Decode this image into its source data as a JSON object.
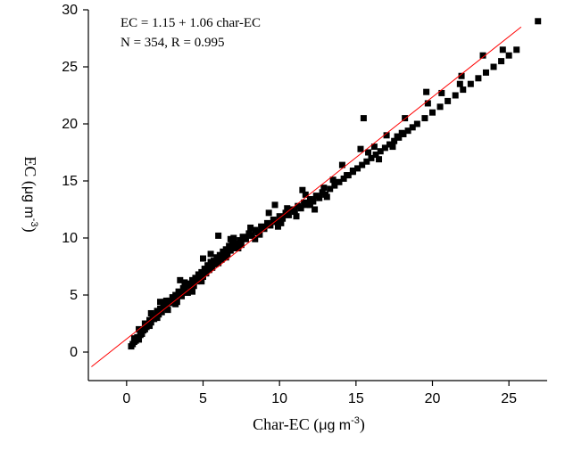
{
  "chart_data": {
    "type": "scatter",
    "title": "",
    "xlabel": {
      "prefix": "Char-EC (",
      "unit": "μg m",
      "sup": "-3",
      "suffix": ")"
    },
    "ylabel": {
      "prefix": "EC (",
      "unit": "μg m",
      "sup": "-3",
      "suffix": ")"
    },
    "xlim": [
      -2.5,
      27.5
    ],
    "ylim": [
      -2.5,
      30
    ],
    "xticks": [
      0,
      5,
      10,
      15,
      20,
      25
    ],
    "yticks": [
      0,
      5,
      10,
      15,
      20,
      25,
      30
    ],
    "grid": false,
    "annotations": [
      "EC = 1.15 + 1.06 char-EC",
      "N = 354, R = 0.995"
    ],
    "fit": {
      "intercept": 1.15,
      "slope": 1.06,
      "x_range": [
        -2.3,
        25.8
      ],
      "color": "#ff0000"
    },
    "marker_color": "#000000",
    "points": [
      [
        0.3,
        0.5
      ],
      [
        0.4,
        0.7
      ],
      [
        0.5,
        0.9
      ],
      [
        0.6,
        1.0
      ],
      [
        0.7,
        1.3
      ],
      [
        0.8,
        1.1
      ],
      [
        0.9,
        1.5
      ],
      [
        0.9,
        1.8
      ],
      [
        1.0,
        1.6
      ],
      [
        1.1,
        1.9
      ],
      [
        1.2,
        2.0
      ],
      [
        1.3,
        2.2
      ],
      [
        1.4,
        2.5
      ],
      [
        1.5,
        2.3
      ],
      [
        1.5,
        2.8
      ],
      [
        1.6,
        2.6
      ],
      [
        1.7,
        3.0
      ],
      [
        1.8,
        2.9
      ],
      [
        1.9,
        3.2
      ],
      [
        2.0,
        3.6
      ],
      [
        2.1,
        3.3
      ],
      [
        2.2,
        3.8
      ],
      [
        2.3,
        3.5
      ],
      [
        2.4,
        4.0
      ],
      [
        2.5,
        3.9
      ],
      [
        2.6,
        4.2
      ],
      [
        2.7,
        3.7
      ],
      [
        2.8,
        4.5
      ],
      [
        2.9,
        4.3
      ],
      [
        3.0,
        4.8
      ],
      [
        3.1,
        4.6
      ],
      [
        3.2,
        5.0
      ],
      [
        3.3,
        4.4
      ],
      [
        3.4,
        5.3
      ],
      [
        3.5,
        5.1
      ],
      [
        3.6,
        4.9
      ],
      [
        3.7,
        5.6
      ],
      [
        3.8,
        5.4
      ],
      [
        3.9,
        5.9
      ],
      [
        4.0,
        5.2
      ],
      [
        4.1,
        6.0
      ],
      [
        4.2,
        5.7
      ],
      [
        4.3,
        6.3
      ],
      [
        4.4,
        5.8
      ],
      [
        4.5,
        6.5
      ],
      [
        4.6,
        6.2
      ],
      [
        4.7,
        6.8
      ],
      [
        4.8,
        6.4
      ],
      [
        4.9,
        7.0
      ],
      [
        5.0,
        6.6
      ],
      [
        5.1,
        7.3
      ],
      [
        5.2,
        6.9
      ],
      [
        5.3,
        7.6
      ],
      [
        5.4,
        7.2
      ],
      [
        5.5,
        7.9
      ],
      [
        5.6,
        7.4
      ],
      [
        5.7,
        8.0
      ],
      [
        5.8,
        7.7
      ],
      [
        5.9,
        8.3
      ],
      [
        6.0,
        7.8
      ],
      [
        6.1,
        8.5
      ],
      [
        6.2,
        8.1
      ],
      [
        6.3,
        8.8
      ],
      [
        6.4,
        8.4
      ],
      [
        6.5,
        9.0
      ],
      [
        6.6,
        8.6
      ],
      [
        6.7,
        9.3
      ],
      [
        6.8,
        8.9
      ],
      [
        6.9,
        9.6
      ],
      [
        7.0,
        9.1
      ],
      [
        7.2,
        9.5
      ],
      [
        7.4,
        9.8
      ],
      [
        7.6,
        10.1
      ],
      [
        7.8,
        9.9
      ],
      [
        8.0,
        10.4
      ],
      [
        8.2,
        10.2
      ],
      [
        8.4,
        10.7
      ],
      [
        8.6,
        10.5
      ],
      [
        8.8,
        11.0
      ],
      [
        9.0,
        10.8
      ],
      [
        9.2,
        11.3
      ],
      [
        9.4,
        11.1
      ],
      [
        9.6,
        11.6
      ],
      [
        9.8,
        11.4
      ],
      [
        10.0,
        11.9
      ],
      [
        10.2,
        11.7
      ],
      [
        10.4,
        12.2
      ],
      [
        10.6,
        12.0
      ],
      [
        10.8,
        12.5
      ],
      [
        11.0,
        12.3
      ],
      [
        11.2,
        12.8
      ],
      [
        11.4,
        12.6
      ],
      [
        11.6,
        13.1
      ],
      [
        11.8,
        12.9
      ],
      [
        12.0,
        13.4
      ],
      [
        12.2,
        13.2
      ],
      [
        12.4,
        13.7
      ],
      [
        12.6,
        13.5
      ],
      [
        12.8,
        14.0
      ],
      [
        13.0,
        13.8
      ],
      [
        13.3,
        14.3
      ],
      [
        13.6,
        14.6
      ],
      [
        13.9,
        14.9
      ],
      [
        14.2,
        15.2
      ],
      [
        14.5,
        15.5
      ],
      [
        14.8,
        15.8
      ],
      [
        15.1,
        16.1
      ],
      [
        15.4,
        16.4
      ],
      [
        15.7,
        16.7
      ],
      [
        16.0,
        17.0
      ],
      [
        16.3,
        17.3
      ],
      [
        16.6,
        17.6
      ],
      [
        16.9,
        17.9
      ],
      [
        17.2,
        18.2
      ],
      [
        17.5,
        18.5
      ],
      [
        17.8,
        18.8
      ],
      [
        18.1,
        19.1
      ],
      [
        18.4,
        19.4
      ],
      [
        18.7,
        19.7
      ],
      [
        19.0,
        20.0
      ],
      [
        19.5,
        20.5
      ],
      [
        20.0,
        21.0
      ],
      [
        20.5,
        21.5
      ],
      [
        21.0,
        22.0
      ],
      [
        21.5,
        22.5
      ],
      [
        22.0,
        23.0
      ],
      [
        22.5,
        23.5
      ],
      [
        23.0,
        24.0
      ],
      [
        23.5,
        24.5
      ],
      [
        24.0,
        25.0
      ],
      [
        24.5,
        25.5
      ],
      [
        25.0,
        26.0
      ],
      [
        25.5,
        26.5
      ],
      [
        26.9,
        29.0
      ],
      [
        1.2,
        2.5
      ],
      [
        2.0,
        3.0
      ],
      [
        2.6,
        4.5
      ],
      [
        3.2,
        4.2
      ],
      [
        3.8,
        6.1
      ],
      [
        4.3,
        5.3
      ],
      [
        4.9,
        6.2
      ],
      [
        5.5,
        8.6
      ],
      [
        6.0,
        10.2
      ],
      [
        6.5,
        8.3
      ],
      [
        7.0,
        10.0
      ],
      [
        7.5,
        9.4
      ],
      [
        8.1,
        10.9
      ],
      [
        8.7,
        10.3
      ],
      [
        9.3,
        12.2
      ],
      [
        9.9,
        11.0
      ],
      [
        10.5,
        12.6
      ],
      [
        11.1,
        11.9
      ],
      [
        11.7,
        13.8
      ],
      [
        12.3,
        12.5
      ],
      [
        12.9,
        14.4
      ],
      [
        13.5,
        15.1
      ],
      [
        14.1,
        16.4
      ],
      [
        14.8,
        15.9
      ],
      [
        15.3,
        17.8
      ],
      [
        15.8,
        17.5
      ],
      [
        16.2,
        18.0
      ],
      [
        17.0,
        19.0
      ],
      [
        17.7,
        18.9
      ],
      [
        18.2,
        20.5
      ],
      [
        19.6,
        22.8
      ],
      [
        19.7,
        21.8
      ],
      [
        20.6,
        22.7
      ],
      [
        21.9,
        24.2
      ],
      [
        21.8,
        23.5
      ],
      [
        23.3,
        26.0
      ],
      [
        24.6,
        26.5
      ],
      [
        15.5,
        20.5
      ],
      [
        11.5,
        14.2
      ],
      [
        9.7,
        12.9
      ],
      [
        5.0,
        8.2
      ],
      [
        6.8,
        9.9
      ],
      [
        7.3,
        9.1
      ],
      [
        8.4,
        9.9
      ],
      [
        10.1,
        11.3
      ],
      [
        12.0,
        12.9
      ],
      [
        13.1,
        13.6
      ],
      [
        14.4,
        15.5
      ],
      [
        16.5,
        16.9
      ],
      [
        17.4,
        18.0
      ],
      [
        18.0,
        19.2
      ],
      [
        3.5,
        6.3
      ],
      [
        2.2,
        4.4
      ],
      [
        1.6,
        3.4
      ],
      [
        0.8,
        2.0
      ],
      [
        0.5,
        1.2
      ]
    ]
  }
}
